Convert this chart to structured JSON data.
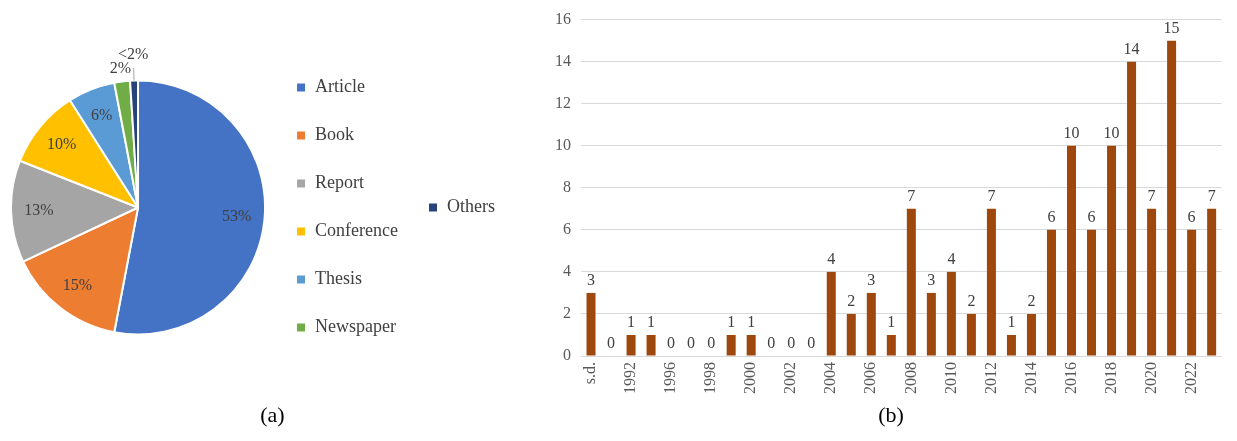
{
  "chart_data": [
    {
      "type": "pie",
      "categories": [
        "Article",
        "Book",
        "Report",
        "Conference",
        "Thesis",
        "Newspaper",
        "Others"
      ],
      "values": [
        53,
        15,
        13,
        10,
        6,
        2,
        1
      ],
      "colors": [
        "#4472c4",
        "#ed7d31",
        "#a5a5a5",
        "#ffc000",
        "#5b9bd5",
        "#70ad47",
        "#264478"
      ],
      "value_labels": [
        "53%",
        "15%",
        "13%",
        "10%",
        "6%",
        "2%",
        "<2%"
      ],
      "legend": "right",
      "annotations": [
        "(a)"
      ]
    },
    {
      "type": "bar",
      "categories": [
        "s.d.",
        null,
        "1992",
        null,
        "1996",
        null,
        "1998",
        null,
        "2000",
        null,
        "2002",
        null,
        "2004",
        null,
        "2006",
        null,
        "2008",
        null,
        "2010",
        null,
        "2012",
        null,
        "2014",
        null,
        "2016",
        null,
        "2018",
        null,
        "2020",
        null,
        "2022",
        null
      ],
      "values": [
        3,
        0,
        1,
        1,
        0,
        0,
        0,
        1,
        1,
        0,
        0,
        0,
        4,
        2,
        3,
        1,
        7,
        3,
        4,
        2,
        7,
        1,
        2,
        6,
        10,
        6,
        10,
        14,
        7,
        15,
        6,
        7
      ],
      "color": "#9e480e",
      "ylim": [
        0,
        16
      ],
      "yticks": [
        0,
        2,
        4,
        6,
        8,
        10,
        12,
        14,
        16
      ],
      "grid": "y",
      "data_labels": true,
      "legend": false,
      "annotations": [
        "(b)"
      ]
    }
  ]
}
